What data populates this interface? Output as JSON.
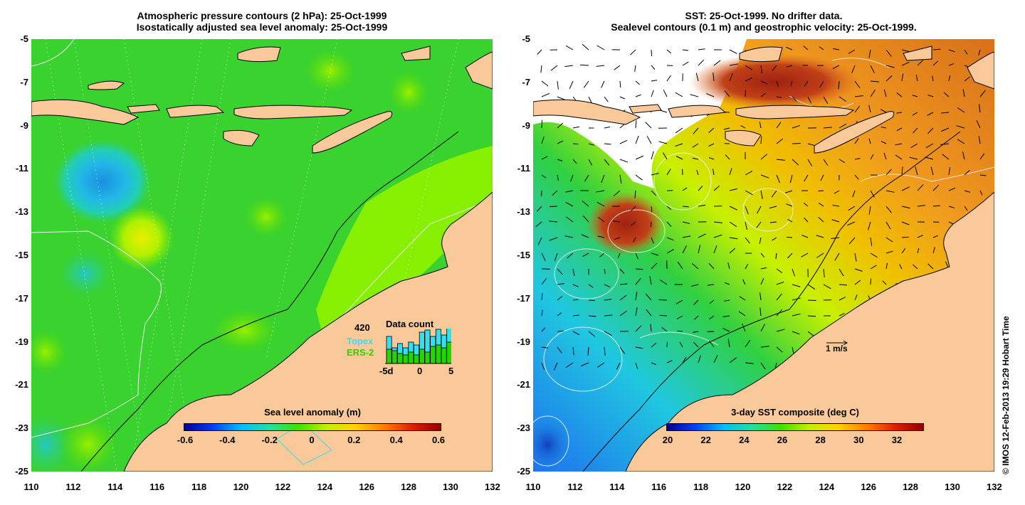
{
  "left_panel": {
    "title_line1": "Atmospheric pressure contours (2 hPa): 25-Oct-1999",
    "title_line2": "Isostatically adjusted sea level anomaly: 25-Oct-1999",
    "colorbar_title": "Sea level anomaly (m)",
    "colorbar_labels": [
      "-0.6",
      "-0.4",
      "-0.2",
      "0",
      "0.2",
      "0.4",
      "0.6"
    ],
    "data_count": {
      "total": "420",
      "title": "Data count",
      "series1": "Topex",
      "series2": "ERS-2",
      "series1_color": "#33e0f0",
      "series2_color": "#22d600",
      "axis_labels": [
        "-5d",
        "0",
        "5"
      ]
    }
  },
  "right_panel": {
    "title_line1": "SST: 25-Oct-1999. No drifter data.",
    "title_line2": "Sealevel contours (0.1 m) and geostrophic velocity: 25-Oct-1999.",
    "colorbar_title": "3-day SST composite (deg C)",
    "colorbar_labels": [
      "20",
      "22",
      "24",
      "26",
      "28",
      "30",
      "32"
    ],
    "velocity_scale": "1 m/s"
  },
  "axes": {
    "lat_labels": [
      "-5",
      "-7",
      "-9",
      "-11",
      "-13",
      "-15",
      "-17",
      "-19",
      "-21",
      "-23",
      "-25"
    ],
    "lon_labels": [
      "110",
      "112",
      "114",
      "116",
      "118",
      "120",
      "122",
      "124",
      "126",
      "128",
      "130",
      "132"
    ]
  },
  "credit": "© IMOS 12-Feb-2013 19:29 Hobart Time",
  "colors": {
    "land": "#f9c99a",
    "sea_green": "#3ad22e",
    "sea_light_green": "#86f000",
    "sea_cyan": "#20c8c0",
    "sst_orange": "#f09a1e",
    "sst_red": "#b8361a"
  }
}
